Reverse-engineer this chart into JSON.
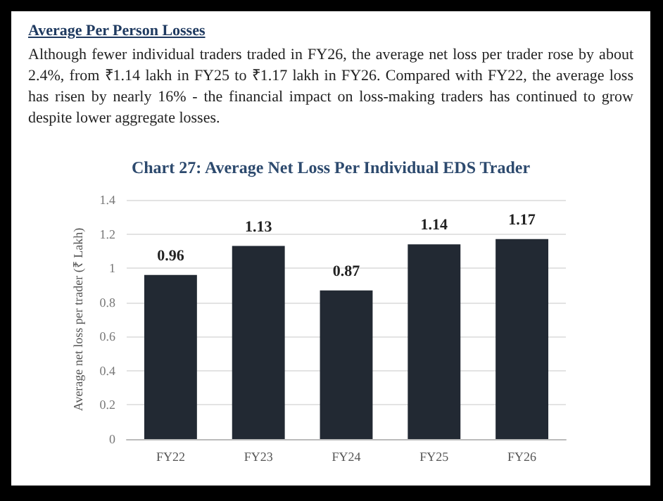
{
  "chart_data": {
    "type": "bar",
    "title": "Chart 27: Average Net Loss Per Individual EDS Trader",
    "annotations": [
      "Average Per Person Losses",
      "Although fewer individual traders traded in FY26, the average net loss per trader rose by about 2.4%, from ₹1.14 lakh in FY25 to ₹1.17 lakh in FY26. Compared with FY22, the average loss has risen by nearly 16% - the financial impact on loss-making traders has continued to grow despite lower aggregate losses."
    ],
    "ylabel": "Average net loss per trader (₹ Lakh)",
    "categories": [
      "FY22",
      "FY23",
      "FY24",
      "FY25",
      "FY26"
    ],
    "values": [
      0.96,
      1.13,
      0.87,
      1.14,
      1.17
    ],
    "color": "#222933",
    "ylim": [
      0,
      1.4
    ],
    "yticks": [
      0,
      0.2,
      0.4,
      0.6,
      0.8,
      1,
      1.2,
      1.4
    ],
    "grid": "y",
    "data_labels": true
  }
}
